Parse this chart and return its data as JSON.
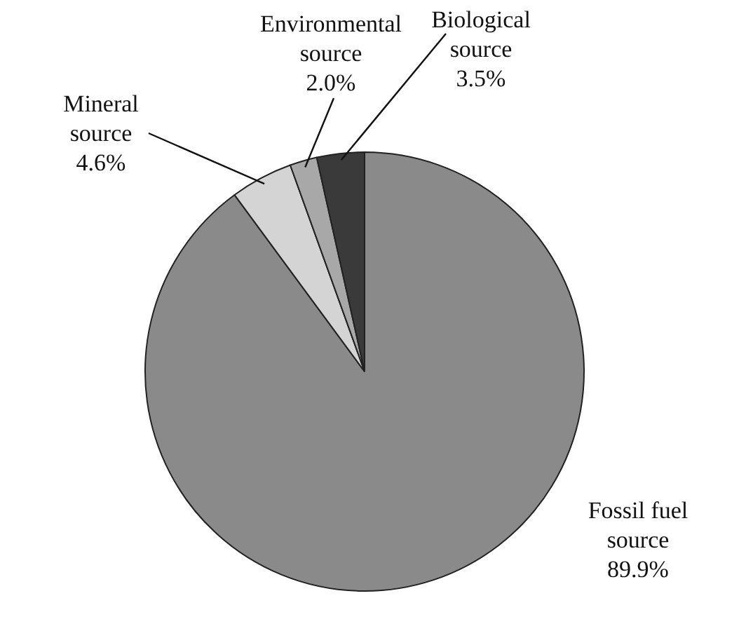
{
  "chart_data": {
    "type": "pie",
    "categories": [
      "Fossil fuel source",
      "Mineral source",
      "Environmental source",
      "Biological source"
    ],
    "values": [
      89.9,
      4.6,
      2.0,
      3.5
    ],
    "value_labels": [
      "89.9%",
      "4.6%",
      "2.0%",
      "3.5%"
    ],
    "colors": [
      "#8a8a8a",
      "#d4d4d4",
      "#a8a8a8",
      "#3a3a3a"
    ],
    "legend": false
  }
}
